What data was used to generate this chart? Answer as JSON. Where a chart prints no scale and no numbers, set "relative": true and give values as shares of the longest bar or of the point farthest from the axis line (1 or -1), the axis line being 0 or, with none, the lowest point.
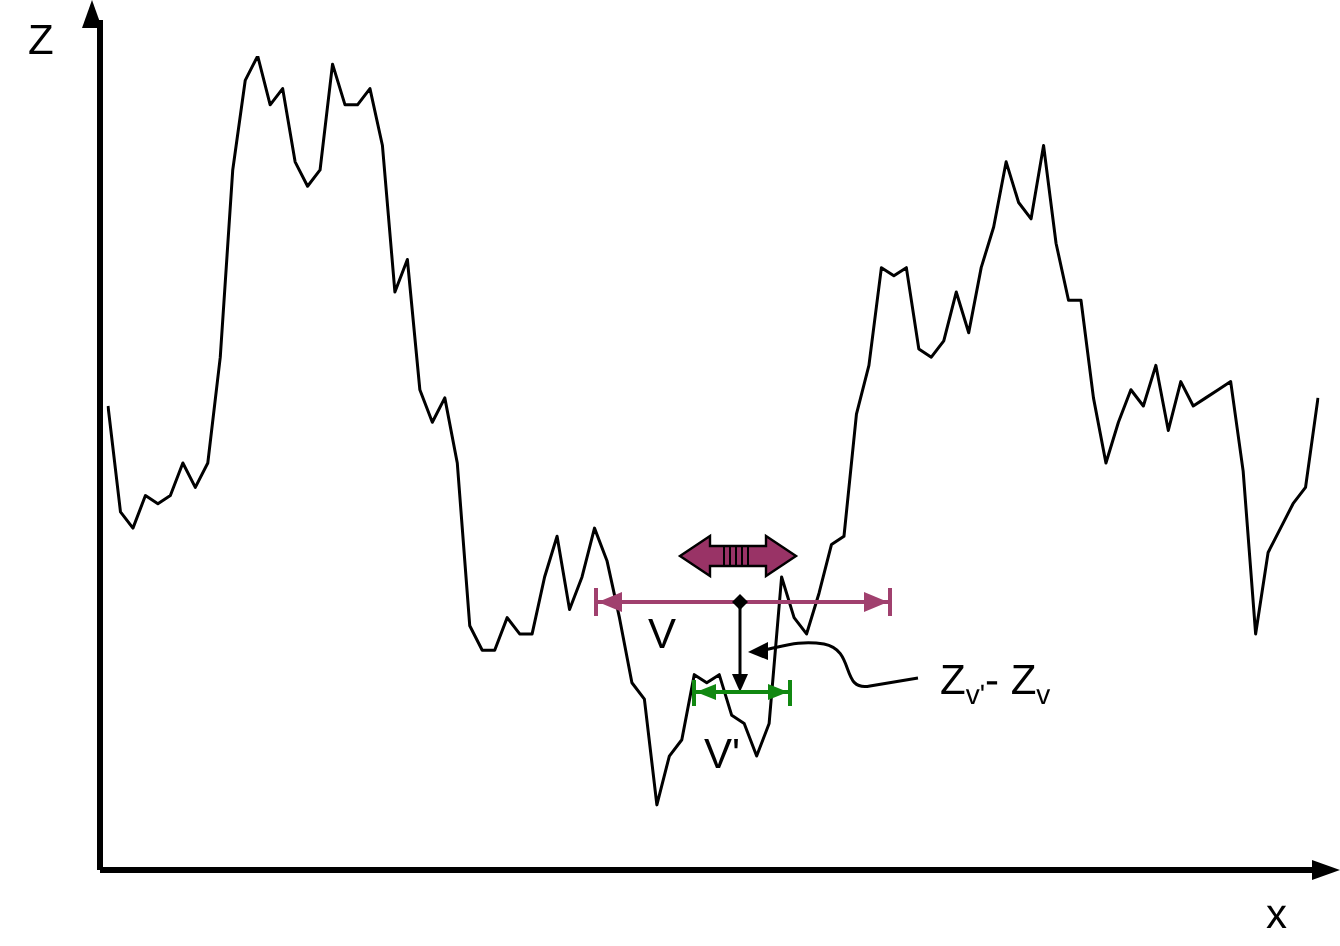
{
  "chart_data": {
    "type": "line",
    "relative": true,
    "xlabel": "x",
    "ylabel": "Z",
    "color": "#000000",
    "marker": "none",
    "legend": false,
    "tick_labels": false,
    "categories": [
      null,
      null,
      null,
      null,
      null,
      null,
      null,
      null,
      null,
      null,
      null,
      null,
      null,
      null,
      null,
      null,
      null,
      null,
      null,
      null,
      null,
      null,
      null,
      null,
      null,
      null,
      null,
      null,
      null,
      null,
      null,
      null,
      null,
      null,
      null,
      null,
      null,
      null,
      null,
      null,
      null,
      null,
      null,
      null,
      null,
      null,
      null,
      null,
      null,
      null,
      null,
      null,
      null,
      null,
      null,
      null,
      null,
      null,
      null,
      null,
      null,
      null,
      null,
      null,
      null,
      null,
      null,
      null,
      null,
      null,
      null,
      null,
      null,
      null,
      null,
      null,
      null,
      null,
      null,
      null,
      null,
      null,
      null,
      null,
      null,
      null,
      null,
      null,
      null,
      null,
      null,
      null,
      null,
      null,
      null,
      null,
      null,
      null
    ],
    "values": [
      0.57,
      0.44,
      0.42,
      0.46,
      0.45,
      0.46,
      0.5,
      0.47,
      0.5,
      0.63,
      0.86,
      0.97,
      1.0,
      0.94,
      0.96,
      0.87,
      0.84,
      0.86,
      0.99,
      0.94,
      0.94,
      0.96,
      0.89,
      0.71,
      0.75,
      0.59,
      0.55,
      0.58,
      0.5,
      0.3,
      0.27,
      0.27,
      0.31,
      0.29,
      0.29,
      0.36,
      0.41,
      0.32,
      0.36,
      0.42,
      0.38,
      0.31,
      0.23,
      0.21,
      0.08,
      0.14,
      0.16,
      0.24,
      0.23,
      0.24,
      0.19,
      0.18,
      0.14,
      0.18,
      0.36,
      0.31,
      0.29,
      0.34,
      0.4,
      0.41,
      0.56,
      0.62,
      0.74,
      0.73,
      0.74,
      0.64,
      0.63,
      0.65,
      0.71,
      0.66,
      0.74,
      0.79,
      0.87,
      0.82,
      0.8,
      0.89,
      0.77,
      0.7,
      0.7,
      0.58,
      0.5,
      0.55,
      0.59,
      0.57,
      0.62,
      0.54,
      0.6,
      0.57,
      0.58,
      0.59,
      0.6,
      0.49,
      0.29,
      0.39,
      0.42,
      0.45,
      0.47,
      0.58
    ],
    "annotations": [
      "V",
      "V'",
      "Z$_{v'}$- Z$_{v}$"
    ]
  }
}
